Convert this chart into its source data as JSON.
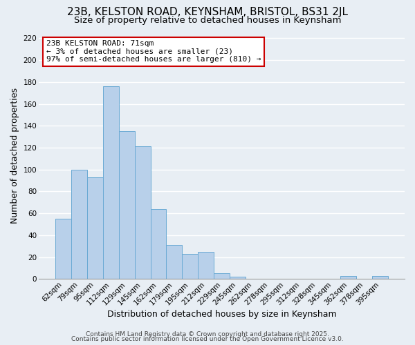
{
  "title": "23B, KELSTON ROAD, KEYNSHAM, BRISTOL, BS31 2JL",
  "subtitle": "Size of property relative to detached houses in Keynsham",
  "xlabel": "Distribution of detached houses by size in Keynsham",
  "ylabel": "Number of detached properties",
  "categories": [
    "62sqm",
    "79sqm",
    "95sqm",
    "112sqm",
    "129sqm",
    "145sqm",
    "162sqm",
    "179sqm",
    "195sqm",
    "212sqm",
    "229sqm",
    "245sqm",
    "262sqm",
    "278sqm",
    "295sqm",
    "312sqm",
    "328sqm",
    "345sqm",
    "362sqm",
    "378sqm",
    "395sqm"
  ],
  "values": [
    55,
    100,
    93,
    176,
    135,
    121,
    64,
    31,
    23,
    25,
    5,
    2,
    0,
    0,
    0,
    0,
    0,
    0,
    3,
    0,
    3
  ],
  "bar_color": "#b8d0ea",
  "bar_edge_color": "#6aaad4",
  "ylim": [
    0,
    225
  ],
  "yticks": [
    0,
    20,
    40,
    60,
    80,
    100,
    120,
    140,
    160,
    180,
    200,
    220
  ],
  "annotation_title": "23B KELSTON ROAD: 71sqm",
  "annotation_line1": "← 3% of detached houses are smaller (23)",
  "annotation_line2": "97% of semi-detached houses are larger (810) →",
  "footer1": "Contains HM Land Registry data © Crown copyright and database right 2025.",
  "footer2": "Contains public sector information licensed under the Open Government Licence v3.0.",
  "background_color": "#e8eef4",
  "grid_color": "#ffffff",
  "title_fontsize": 11,
  "subtitle_fontsize": 9.5,
  "axis_label_fontsize": 9,
  "tick_fontsize": 7.5,
  "footer_fontsize": 6.5,
  "ann_fontsize": 8
}
